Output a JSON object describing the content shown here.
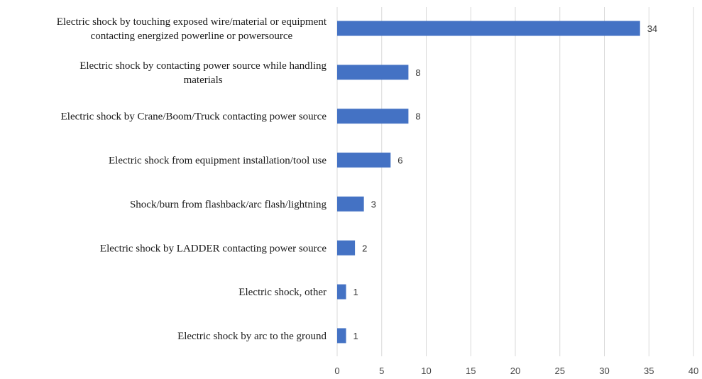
{
  "chart_data": {
    "type": "bar",
    "orientation": "horizontal",
    "categories": [
      [
        "Electric shock by touching exposed wire/material or equipment",
        "contacting energized powerline or powersource"
      ],
      [
        "Electric shock by contacting power source while handling",
        "materials"
      ],
      [
        "Electric shock by Crane/Boom/Truck contacting power source"
      ],
      [
        "Electric shock from equipment installation/tool use"
      ],
      [
        "Shock/burn from flashback/arc flash/lightning"
      ],
      [
        "Electric shock by LADDER contacting power source"
      ],
      [
        "Electric shock, other"
      ],
      [
        "Electric shock by arc to the ground"
      ]
    ],
    "values": [
      34,
      8,
      8,
      6,
      3,
      2,
      1,
      1
    ],
    "data_labels": [
      "34",
      "8",
      "8",
      "6",
      "3",
      "2",
      "1",
      "1"
    ],
    "xlim": [
      0,
      40
    ],
    "xticks": [
      "0",
      "5",
      "10",
      "15",
      "20",
      "25",
      "30",
      "35",
      "40"
    ],
    "title": "",
    "xlabel": "",
    "ylabel": "",
    "grid": true,
    "bar_color": "#4472C4",
    "grid_color": "#d9d9d9"
  }
}
